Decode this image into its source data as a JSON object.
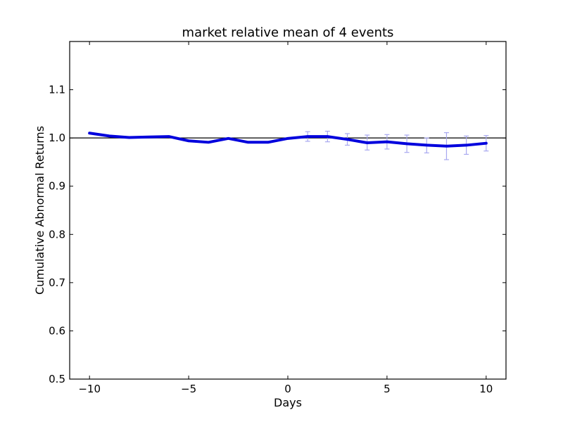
{
  "chart_data": {
    "type": "line",
    "title": "market relative mean of 4 events",
    "xlabel": "Days",
    "ylabel": "Cumulative Abnormal Returns",
    "xlim": [
      -11,
      11
    ],
    "ylim": [
      0.5,
      1.2
    ],
    "xticks": [
      -10,
      -5,
      0,
      5,
      10
    ],
    "xtick_labels": [
      "−10",
      "−5",
      "0",
      "5",
      "10"
    ],
    "yticks": [
      0.5,
      0.6,
      0.7,
      0.8,
      0.9,
      1.0,
      1.1
    ],
    "ytick_labels": [
      "0.5",
      "0.6",
      "0.7",
      "0.8",
      "0.9",
      "1.0",
      "1.1"
    ],
    "reference_line": {
      "y": 1.0,
      "color": "#000000"
    },
    "grid": false,
    "colors": {
      "line": "#0000dd",
      "error_bars": "#a8a8f0",
      "axes": "#000000"
    },
    "x": [
      -10,
      -9,
      -8,
      -7,
      -6,
      -5,
      -4,
      -3,
      -2,
      -1,
      0,
      1,
      2,
      3,
      4,
      5,
      6,
      7,
      8,
      9,
      10
    ],
    "y": [
      1.01,
      1.004,
      1.001,
      1.002,
      1.003,
      0.994,
      0.991,
      0.999,
      0.991,
      0.991,
      0.999,
      1.003,
      1.003,
      0.997,
      0.99,
      0.992,
      0.988,
      0.985,
      0.983,
      0.985,
      0.989
    ],
    "error_bars": [
      {
        "x": 1,
        "low": 0.993,
        "high": 1.013
      },
      {
        "x": 2,
        "low": 0.992,
        "high": 1.014
      },
      {
        "x": 3,
        "low": 0.985,
        "high": 1.009
      },
      {
        "x": 4,
        "low": 0.975,
        "high": 1.006
      },
      {
        "x": 5,
        "low": 0.977,
        "high": 1.007
      },
      {
        "x": 6,
        "low": 0.97,
        "high": 1.006
      },
      {
        "x": 7,
        "low": 0.969,
        "high": 1.0
      },
      {
        "x": 8,
        "low": 0.955,
        "high": 1.011
      },
      {
        "x": 9,
        "low": 0.966,
        "high": 1.004
      },
      {
        "x": 10,
        "low": 0.973,
        "high": 1.005
      }
    ]
  }
}
